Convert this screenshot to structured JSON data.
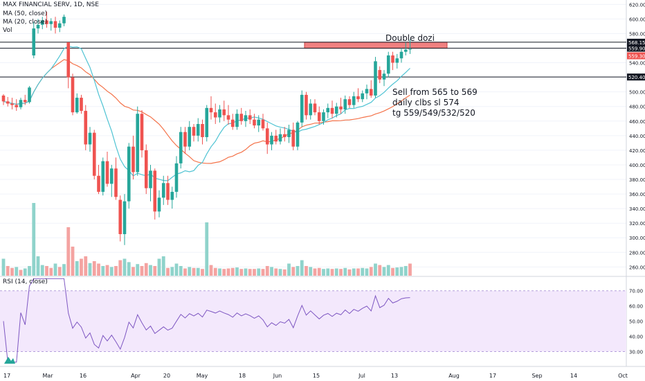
{
  "header": {
    "symbol": "MAX FINANCIAL SERV, 1D, NSE",
    "ma50": "MA (50, close)",
    "ma20": "MA (20, close)",
    "vol": "Vol",
    "rsi": "RSI (14, close)"
  },
  "annotations": {
    "double_dozi": "Double dozi",
    "line1": "Sell from 565 to 569",
    "line2": "daily clbs sl 574",
    "line3": "tg 559/549/532/520"
  },
  "colors": {
    "up": "#26a69a",
    "down": "#ef5350",
    "up_vol": "#8fd3cb",
    "down_vol": "#f4a3a1",
    "ma20": "#4fc3d3",
    "ma50": "#f4734a",
    "rsi": "#7e57c2",
    "rsi_band": "#f3e8fc",
    "zone": "#f08080"
  },
  "chart_data": {
    "type": "candlestick",
    "title": "MAX FINANCIAL SERV, 1D, NSE",
    "price_axis": {
      "ticks": [
        260,
        280,
        300,
        320,
        340,
        360,
        380,
        400,
        420,
        440,
        460,
        480,
        500,
        520,
        540,
        560,
        580,
        600,
        620
      ],
      "range": [
        248,
        626
      ]
    },
    "time_axis": {
      "labels": [
        "17",
        "Mar",
        "16",
        "Apr",
        "20",
        "May",
        "18",
        "Jun",
        "15",
        "Jul",
        "13",
        "Aug",
        "17",
        "Sep",
        "14",
        "Oct"
      ]
    },
    "horizontal_levels": [
      568.15,
      559.9,
      520.4
    ],
    "current_price_label": "559.30",
    "zone": {
      "from_price": 559.9,
      "to_price": 568.15
    },
    "candles": [
      [
        495,
        497,
        482,
        487
      ],
      [
        487,
        493,
        480,
        484
      ],
      [
        484,
        492,
        476,
        482
      ],
      [
        482,
        490,
        474,
        479
      ],
      [
        479,
        492,
        476,
        489
      ],
      [
        489,
        496,
        482,
        486
      ],
      [
        486,
        508,
        484,
        506
      ],
      [
        550,
        596,
        546,
        587
      ],
      [
        587,
        600,
        580,
        592
      ],
      [
        592,
        603,
        586,
        598
      ],
      [
        598,
        610,
        588,
        593
      ],
      [
        593,
        601,
        584,
        597
      ],
      [
        597,
        603,
        580,
        588
      ],
      [
        588,
        598,
        582,
        594
      ],
      [
        594,
        606,
        590,
        603
      ],
      [
        568,
        568,
        505,
        520
      ],
      [
        520,
        525,
        468,
        472
      ],
      [
        472,
        498,
        470,
        492
      ],
      [
        492,
        496,
        470,
        474
      ],
      [
        474,
        482,
        420,
        428
      ],
      [
        428,
        452,
        418,
        444
      ],
      [
        444,
        448,
        380,
        385
      ],
      [
        385,
        400,
        360,
        363
      ],
      [
        363,
        410,
        358,
        405
      ],
      [
        405,
        418,
        370,
        374
      ],
      [
        374,
        400,
        356,
        395
      ],
      [
        395,
        410,
        352,
        356
      ],
      [
        352,
        358,
        295,
        305
      ],
      [
        305,
        360,
        290,
        350
      ],
      [
        350,
        430,
        340,
        425
      ],
      [
        425,
        440,
        380,
        390
      ],
      [
        390,
        480,
        385,
        470
      ],
      [
        470,
        475,
        410,
        420
      ],
      [
        420,
        428,
        360,
        368
      ],
      [
        368,
        400,
        350,
        392
      ],
      [
        392,
        395,
        325,
        336
      ],
      [
        336,
        365,
        328,
        355
      ],
      [
        355,
        385,
        345,
        375
      ],
      [
        375,
        385,
        345,
        352
      ],
      [
        352,
        370,
        340,
        363
      ],
      [
        363,
        412,
        355,
        402
      ],
      [
        402,
        452,
        395,
        445
      ],
      [
        445,
        452,
        415,
        425
      ],
      [
        425,
        460,
        420,
        452
      ],
      [
        452,
        456,
        432,
        440
      ],
      [
        440,
        464,
        432,
        456
      ],
      [
        456,
        462,
        428,
        438
      ],
      [
        438,
        482,
        432,
        478
      ],
      [
        478,
        494,
        462,
        472
      ],
      [
        472,
        484,
        456,
        465
      ],
      [
        465,
        482,
        458,
        476
      ],
      [
        476,
        488,
        460,
        468
      ],
      [
        468,
        482,
        455,
        462
      ],
      [
        462,
        470,
        448,
        452
      ],
      [
        452,
        476,
        448,
        470
      ],
      [
        470,
        478,
        455,
        460
      ],
      [
        460,
        474,
        452,
        468
      ],
      [
        468,
        476,
        456,
        462
      ],
      [
        462,
        470,
        450,
        454
      ],
      [
        454,
        468,
        445,
        462
      ],
      [
        462,
        470,
        447,
        450
      ],
      [
        450,
        458,
        415,
        428
      ],
      [
        428,
        445,
        420,
        440
      ],
      [
        440,
        448,
        428,
        432
      ],
      [
        432,
        450,
        428,
        442
      ],
      [
        442,
        452,
        432,
        438
      ],
      [
        438,
        455,
        430,
        448
      ],
      [
        448,
        458,
        420,
        425
      ],
      [
        425,
        460,
        420,
        458
      ],
      [
        458,
        502,
        452,
        496
      ],
      [
        496,
        500,
        462,
        468
      ],
      [
        468,
        490,
        462,
        484
      ],
      [
        484,
        490,
        468,
        472
      ],
      [
        472,
        480,
        455,
        460
      ],
      [
        460,
        476,
        455,
        472
      ],
      [
        472,
        484,
        464,
        478
      ],
      [
        478,
        488,
        464,
        470
      ],
      [
        470,
        485,
        465,
        480
      ],
      [
        480,
        492,
        470,
        476
      ],
      [
        476,
        495,
        470,
        490
      ],
      [
        490,
        494,
        478,
        482
      ],
      [
        482,
        500,
        478,
        494
      ],
      [
        494,
        505,
        486,
        490
      ],
      [
        490,
        502,
        486,
        498
      ],
      [
        498,
        510,
        490,
        504
      ],
      [
        504,
        516,
        492,
        495
      ],
      [
        495,
        548,
        492,
        542
      ],
      [
        530,
        535,
        512,
        517
      ],
      [
        517,
        530,
        508,
        525
      ],
      [
        525,
        555,
        520,
        550
      ],
      [
        550,
        555,
        530,
        540
      ],
      [
        540,
        552,
        532,
        546
      ],
      [
        546,
        560,
        540,
        555
      ],
      [
        555,
        568,
        550,
        558
      ],
      [
        558,
        572,
        552,
        559
      ]
    ],
    "volumes": [
      [
        0,
        3.5
      ],
      [
        1,
        2.0
      ],
      [
        1,
        1.6
      ],
      [
        0,
        1.8
      ],
      [
        1,
        1.2
      ],
      [
        0,
        1.5
      ],
      [
        0,
        2.0
      ],
      [
        0,
        15
      ],
      [
        0,
        4.0
      ],
      [
        0,
        2.2
      ],
      [
        1,
        2.0
      ],
      [
        1,
        1.6
      ],
      [
        0,
        2.5
      ],
      [
        1,
        1.8
      ],
      [
        0,
        2.4
      ],
      [
        1,
        10
      ],
      [
        1,
        6.0
      ],
      [
        0,
        3.0
      ],
      [
        1,
        3.5
      ],
      [
        1,
        4.0
      ],
      [
        0,
        2.6
      ],
      [
        1,
        3.0
      ],
      [
        1,
        2.5
      ],
      [
        0,
        2.0
      ],
      [
        1,
        2.2
      ],
      [
        0,
        1.8
      ],
      [
        1,
        2.0
      ],
      [
        1,
        3.2
      ],
      [
        0,
        3.5
      ],
      [
        0,
        2.8
      ],
      [
        1,
        1.8
      ],
      [
        0,
        2.4
      ],
      [
        1,
        2.0
      ],
      [
        1,
        2.6
      ],
      [
        0,
        2.2
      ],
      [
        1,
        2.0
      ],
      [
        0,
        3.5
      ],
      [
        0,
        4.0
      ],
      [
        1,
        1.6
      ],
      [
        0,
        1.8
      ],
      [
        0,
        2.5
      ],
      [
        0,
        2.0
      ],
      [
        1,
        1.5
      ],
      [
        0,
        1.8
      ],
      [
        1,
        1.6
      ],
      [
        0,
        1.6
      ],
      [
        1,
        1.4
      ],
      [
        0,
        11
      ],
      [
        1,
        2.2
      ],
      [
        1,
        1.6
      ],
      [
        0,
        1.5
      ],
      [
        1,
        1.4
      ],
      [
        1,
        1.5
      ],
      [
        1,
        1.6
      ],
      [
        0,
        1.7
      ],
      [
        1,
        1.4
      ],
      [
        0,
        1.5
      ],
      [
        1,
        1.4
      ],
      [
        1,
        1.4
      ],
      [
        0,
        1.5
      ],
      [
        1,
        1.4
      ],
      [
        1,
        2.0
      ],
      [
        0,
        1.8
      ],
      [
        1,
        1.5
      ],
      [
        0,
        1.4
      ],
      [
        1,
        1.3
      ],
      [
        0,
        2.5
      ],
      [
        1,
        1.8
      ],
      [
        0,
        2.0
      ],
      [
        0,
        3.2
      ],
      [
        1,
        2.0
      ],
      [
        0,
        1.8
      ],
      [
        1,
        1.5
      ],
      [
        1,
        1.6
      ],
      [
        0,
        1.4
      ],
      [
        0,
        1.5
      ],
      [
        1,
        1.4
      ],
      [
        0,
        1.5
      ],
      [
        1,
        1.4
      ],
      [
        0,
        1.6
      ],
      [
        1,
        1.3
      ],
      [
        0,
        1.5
      ],
      [
        1,
        1.5
      ],
      [
        0,
        1.6
      ],
      [
        0,
        1.5
      ],
      [
        1,
        1.8
      ],
      [
        0,
        2.5
      ],
      [
        1,
        2.2
      ],
      [
        0,
        1.8
      ],
      [
        0,
        2.2
      ],
      [
        1,
        1.6
      ],
      [
        0,
        1.7
      ],
      [
        0,
        1.8
      ],
      [
        0,
        2.0
      ],
      [
        1,
        2.5
      ]
    ],
    "rsi_axis": {
      "ticks": [
        30,
        40,
        50,
        60,
        70
      ],
      "range": [
        22,
        79
      ],
      "band": [
        30,
        70
      ]
    }
  }
}
